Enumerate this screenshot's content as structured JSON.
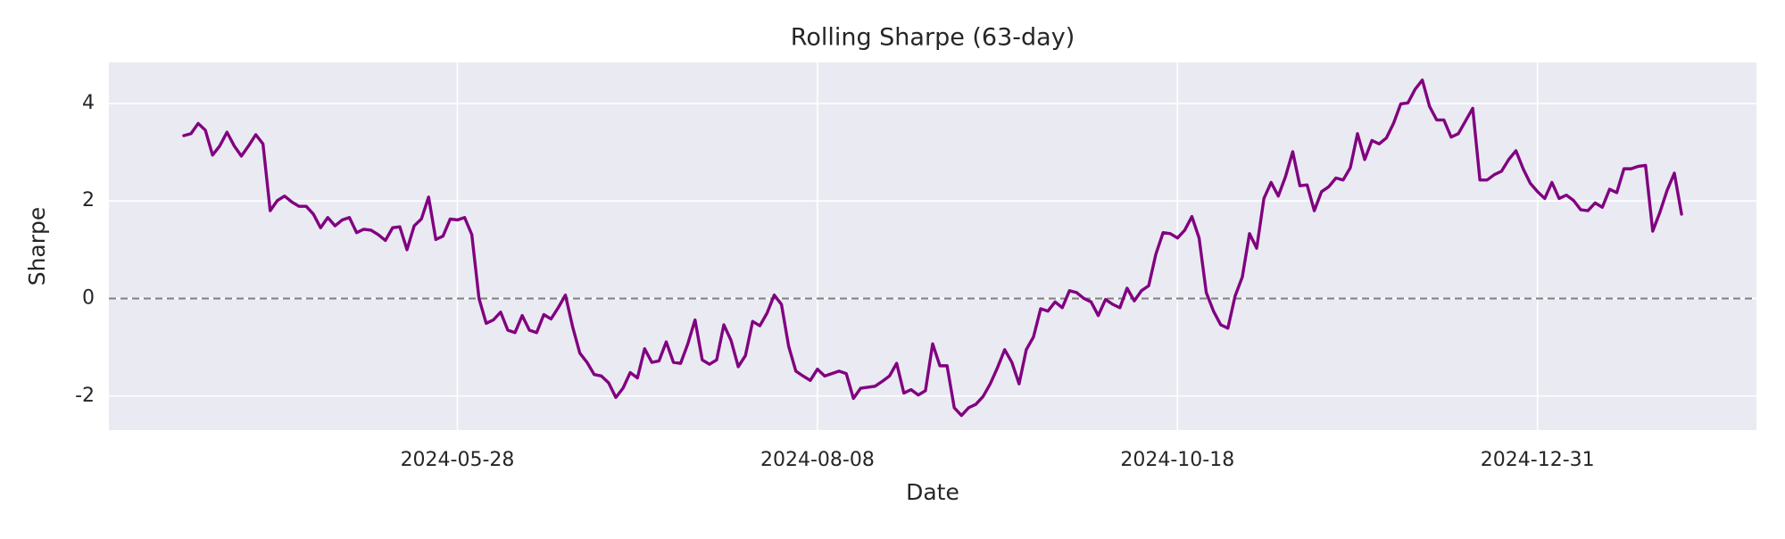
{
  "chart_data": {
    "type": "line",
    "title": "Rolling Sharpe (63-day)",
    "x_label": "Date",
    "y_label": "Sharpe",
    "categories": [
      null,
      null,
      null,
      null,
      null,
      null,
      null,
      null,
      null,
      null,
      null,
      null,
      null,
      null,
      null,
      null,
      null,
      null,
      null,
      null,
      null,
      null,
      null,
      null,
      null,
      null,
      null,
      null,
      null,
      null,
      null,
      null,
      null,
      null,
      null,
      null,
      null,
      null,
      "2024-05-28",
      null,
      null,
      null,
      null,
      null,
      null,
      null,
      null,
      null,
      null,
      null,
      null,
      null,
      null,
      null,
      null,
      null,
      null,
      null,
      null,
      null,
      null,
      null,
      null,
      null,
      null,
      null,
      null,
      null,
      null,
      null,
      null,
      null,
      null,
      null,
      null,
      null,
      null,
      null,
      null,
      null,
      null,
      null,
      null,
      null,
      null,
      null,
      null,
      null,
      "2024-08-08",
      null,
      null,
      null,
      null,
      null,
      null,
      null,
      null,
      null,
      null,
      null,
      null,
      null,
      null,
      null,
      null,
      null,
      null,
      null,
      null,
      null,
      null,
      null,
      null,
      null,
      null,
      null,
      null,
      null,
      null,
      null,
      null,
      null,
      null,
      null,
      null,
      null,
      null,
      null,
      null,
      null,
      null,
      null,
      null,
      null,
      null,
      null,
      null,
      null,
      "2024-10-18",
      null,
      null,
      null,
      null,
      null,
      null,
      null,
      null,
      null,
      null,
      null,
      null,
      null,
      null,
      null,
      null,
      null,
      null,
      null,
      null,
      null,
      null,
      null,
      null,
      null,
      null,
      null,
      null,
      null,
      null,
      null,
      null,
      null,
      null,
      null,
      null,
      null,
      null,
      null,
      null,
      null,
      null,
      null,
      null,
      null,
      null,
      null,
      null,
      null,
      "2024-12-31",
      null,
      null,
      null,
      null,
      null,
      null,
      null,
      null,
      null,
      null,
      null,
      null,
      null,
      null,
      null,
      null,
      null,
      null,
      null,
      null
    ],
    "series": [
      {
        "name": "Rolling Sharpe",
        "color": "#800080",
        "values": [
          3.34,
          3.38,
          3.59,
          3.45,
          2.94,
          3.13,
          3.41,
          3.13,
          2.92,
          3.13,
          3.36,
          3.17,
          1.8,
          2.01,
          2.1,
          1.98,
          1.89,
          1.89,
          1.73,
          1.45,
          1.66,
          1.49,
          1.61,
          1.66,
          1.35,
          1.42,
          1.4,
          1.31,
          1.19,
          1.45,
          1.47,
          1.0,
          1.49,
          1.63,
          2.08,
          1.21,
          1.28,
          1.63,
          1.61,
          1.66,
          1.31,
          0.0,
          -0.51,
          -0.44,
          -0.28,
          -0.65,
          -0.7,
          -0.35,
          -0.65,
          -0.7,
          -0.33,
          -0.42,
          -0.19,
          0.07,
          -0.58,
          -1.12,
          -1.31,
          -1.56,
          -1.59,
          -1.73,
          -2.03,
          -1.84,
          -1.52,
          -1.63,
          -1.03,
          -1.31,
          -1.28,
          -0.89,
          -1.31,
          -1.33,
          -0.93,
          -0.44,
          -1.26,
          -1.35,
          -1.26,
          -0.54,
          -0.86,
          -1.4,
          -1.17,
          -0.47,
          -0.56,
          -0.3,
          0.07,
          -0.12,
          -0.98,
          -1.49,
          -1.59,
          -1.68,
          -1.45,
          -1.59,
          -1.54,
          -1.49,
          -1.54,
          -2.05,
          -1.84,
          -1.82,
          -1.8,
          -1.7,
          -1.59,
          -1.33,
          -1.94,
          -1.87,
          -1.98,
          -1.89,
          -0.93,
          -1.38,
          -1.38,
          -2.24,
          -2.4,
          -2.24,
          -2.17,
          -2.01,
          -1.75,
          -1.42,
          -1.05,
          -1.31,
          -1.75,
          -1.05,
          -0.79,
          -0.21,
          -0.26,
          -0.07,
          -0.19,
          0.16,
          0.12,
          0.0,
          -0.07,
          -0.35,
          -0.02,
          -0.12,
          -0.19,
          0.21,
          -0.05,
          0.16,
          0.26,
          0.91,
          1.35,
          1.33,
          1.24,
          1.4,
          1.68,
          1.24,
          0.12,
          -0.26,
          -0.54,
          -0.61,
          0.05,
          0.44,
          1.33,
          1.03,
          2.05,
          2.38,
          2.1,
          2.5,
          3.01,
          2.31,
          2.33,
          1.8,
          2.19,
          2.29,
          2.47,
          2.43,
          2.68,
          3.38,
          2.85,
          3.24,
          3.17,
          3.29,
          3.59,
          3.99,
          4.01,
          4.29,
          4.48,
          3.94,
          3.66,
          3.66,
          3.31,
          3.38,
          3.64,
          3.9,
          2.43,
          2.43,
          2.54,
          2.61,
          2.85,
          3.03,
          2.66,
          2.36,
          2.19,
          2.05,
          2.38,
          2.05,
          2.12,
          2.01,
          1.82,
          1.8,
          1.96,
          1.87,
          2.24,
          2.17,
          2.66,
          2.66,
          2.71,
          2.73,
          1.38,
          1.77,
          2.22,
          2.57,
          1.73
        ]
      }
    ],
    "reference_line": {
      "value": 0,
      "color": "#808080",
      "style": "dashed"
    },
    "xlim": [
      -10.4,
      218.4
    ],
    "ylim": [
      -2.7,
      4.84
    ],
    "yticks": [
      -2,
      0,
      2,
      4
    ],
    "grid": true,
    "background": "#eaeaf2"
  }
}
